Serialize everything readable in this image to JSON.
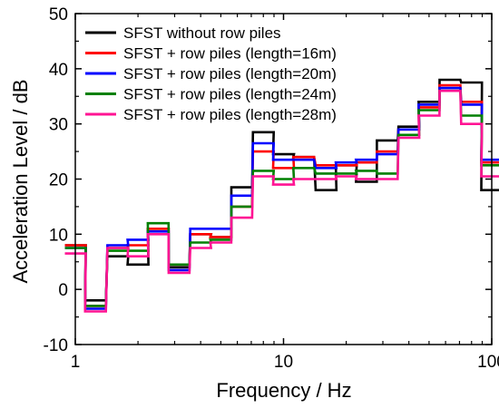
{
  "chart_data": {
    "type": "line",
    "step": true,
    "title": "",
    "xlabel": "Frequency / Hz",
    "ylabel": "Acceleration Level / dB",
    "xscale": "log",
    "xlim": [
      1,
      100
    ],
    "ylim": [
      -10,
      50
    ],
    "x_ticks": [
      1,
      10,
      100
    ],
    "x_tick_labels": [
      "1",
      "10",
      "100"
    ],
    "y_ticks": [
      -10,
      0,
      10,
      20,
      30,
      40,
      50
    ],
    "y_tick_labels": [
      "-10",
      "0",
      "10",
      "20",
      "30",
      "40",
      "50"
    ],
    "grid": false,
    "legend_position": "top-left",
    "x": [
      1,
      1.25,
      1.6,
      2,
      2.5,
      3.15,
      4,
      5,
      6.3,
      8,
      10,
      12.5,
      16,
      20,
      25,
      31.5,
      40,
      50,
      63,
      80,
      100
    ],
    "series": [
      {
        "name": "SFST without row piles",
        "color": "#000000",
        "values": [
          8,
          -2,
          6,
          4.5,
          11,
          4,
          10,
          9.5,
          18.5,
          28.5,
          24.5,
          24,
          18,
          22.5,
          19.5,
          27,
          29.5,
          34,
          38,
          37.5,
          18
        ]
      },
      {
        "name": "SFST + row piles (length=16m)",
        "color": "#ff0000",
        "values": [
          8,
          -3,
          7.5,
          8,
          11,
          4.5,
          10,
          9.5,
          15,
          25,
          22,
          24,
          22.5,
          22.5,
          23,
          25,
          29,
          33,
          37,
          34,
          23
        ]
      },
      {
        "name": "SFST + row piles (length=20m)",
        "color": "#0000ff",
        "values": [
          7.5,
          -3.5,
          8,
          9,
          10.5,
          3.5,
          11,
          11,
          17,
          26.5,
          23.5,
          23.5,
          22,
          23,
          23.5,
          24.5,
          29,
          33.5,
          36.5,
          33.5,
          23.5
        ]
      },
      {
        "name": "SFST + row piles (length=24m)",
        "color": "#008000",
        "values": [
          7.5,
          -3,
          7,
          7,
          12,
          4.5,
          8.5,
          9,
          15,
          21.5,
          20,
          22,
          21,
          21,
          21.5,
          21,
          28,
          32.5,
          36,
          31.5,
          22.5
        ]
      },
      {
        "name": "SFST + row piles (length=28m)",
        "color": "#ff1493",
        "values": [
          6.5,
          -4,
          7.5,
          6,
          10,
          3,
          7.5,
          8.5,
          13,
          20.5,
          19,
          20,
          20,
          20.5,
          20,
          20,
          27.5,
          31.5,
          36,
          30,
          20.5
        ]
      }
    ]
  }
}
